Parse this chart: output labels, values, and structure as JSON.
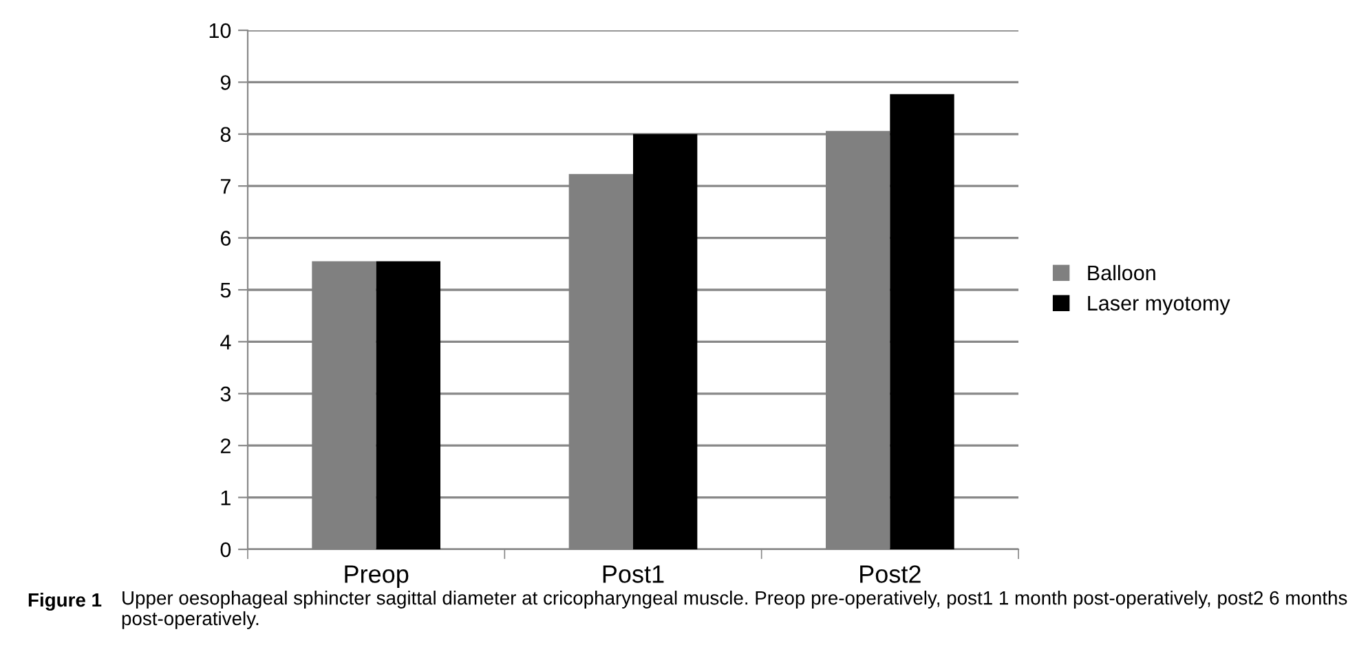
{
  "chart_data": {
    "type": "bar",
    "categories": [
      "Preop",
      "Post1",
      "Post2"
    ],
    "series": [
      {
        "name": "Balloon",
        "color": "#808080",
        "values": [
          5.55,
          7.23,
          8.06
        ]
      },
      {
        "name": "Laser myotomy",
        "color": "#000000",
        "values": [
          5.55,
          8.0,
          8.77
        ]
      }
    ],
    "ylim": [
      0,
      10
    ],
    "yticks": [
      0,
      1,
      2,
      3,
      4,
      5,
      6,
      7,
      8,
      9,
      10
    ],
    "grid": "y",
    "legend": "right",
    "annotations": [
      "Figure 1",
      "Upper oesophageal sphincter sagittal diameter at cricopharyngeal muscle. Preop pre-operatively, post1 1 month post-operatively, post2 6 months post-operatively."
    ]
  }
}
